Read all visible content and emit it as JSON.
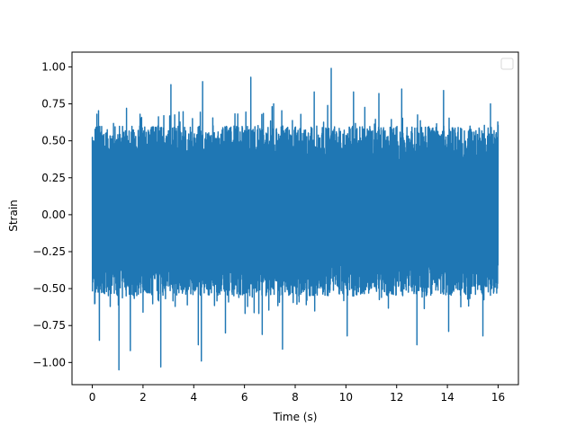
{
  "chart_data": {
    "type": "line",
    "title": "",
    "xlabel": "Time (s)",
    "ylabel": "Strain",
    "xlim": [
      -0.8,
      16.8
    ],
    "ylim": [
      -1.15,
      1.1
    ],
    "xticks": [
      0,
      2,
      4,
      6,
      8,
      10,
      12,
      14,
      16
    ],
    "xtick_labels": [
      "0",
      "2",
      "4",
      "6",
      "8",
      "10",
      "12",
      "14",
      "16"
    ],
    "yticks": [
      -1.0,
      -0.75,
      -0.5,
      -0.25,
      0.0,
      0.25,
      0.5,
      0.75,
      1.0
    ],
    "ytick_labels": [
      "−1.00",
      "−0.75",
      "−0.50",
      "−0.25",
      "0.00",
      "0.25",
      "0.50",
      "0.75",
      "1.00"
    ],
    "grid": false,
    "legend": {
      "placement": "upper right",
      "entries": []
    },
    "series": [
      {
        "color": "#1f77b4",
        "x_range": [
          0,
          16
        ],
        "envelope_typical": [
          -0.55,
          0.6
        ],
        "peaks": [
          {
            "x": 0.18,
            "y": 0.68
          },
          {
            "x": 1.35,
            "y": 0.72
          },
          {
            "x": 2.82,
            "y": 0.67
          },
          {
            "x": 3.1,
            "y": 0.88
          },
          {
            "x": 3.95,
            "y": 0.65
          },
          {
            "x": 4.35,
            "y": 0.9
          },
          {
            "x": 6.25,
            "y": 0.93
          },
          {
            "x": 7.15,
            "y": 0.75
          },
          {
            "x": 8.75,
            "y": 0.83
          },
          {
            "x": 9.42,
            "y": 0.99
          },
          {
            "x": 10.3,
            "y": 0.83
          },
          {
            "x": 11.3,
            "y": 0.82
          },
          {
            "x": 12.2,
            "y": 0.85
          },
          {
            "x": 13.85,
            "y": 0.84
          },
          {
            "x": 15.7,
            "y": 0.75
          }
        ],
        "troughs": [
          {
            "x": 0.28,
            "y": -0.85
          },
          {
            "x": 1.05,
            "y": -1.05
          },
          {
            "x": 1.5,
            "y": -0.92
          },
          {
            "x": 2.7,
            "y": -1.03
          },
          {
            "x": 4.18,
            "y": -0.88
          },
          {
            "x": 4.3,
            "y": -0.99
          },
          {
            "x": 5.25,
            "y": -0.8
          },
          {
            "x": 6.7,
            "y": -0.81
          },
          {
            "x": 7.5,
            "y": -0.91
          },
          {
            "x": 10.05,
            "y": -0.82
          },
          {
            "x": 12.8,
            "y": -0.88
          },
          {
            "x": 14.05,
            "y": -0.79
          },
          {
            "x": 15.4,
            "y": -0.82
          }
        ]
      }
    ]
  }
}
